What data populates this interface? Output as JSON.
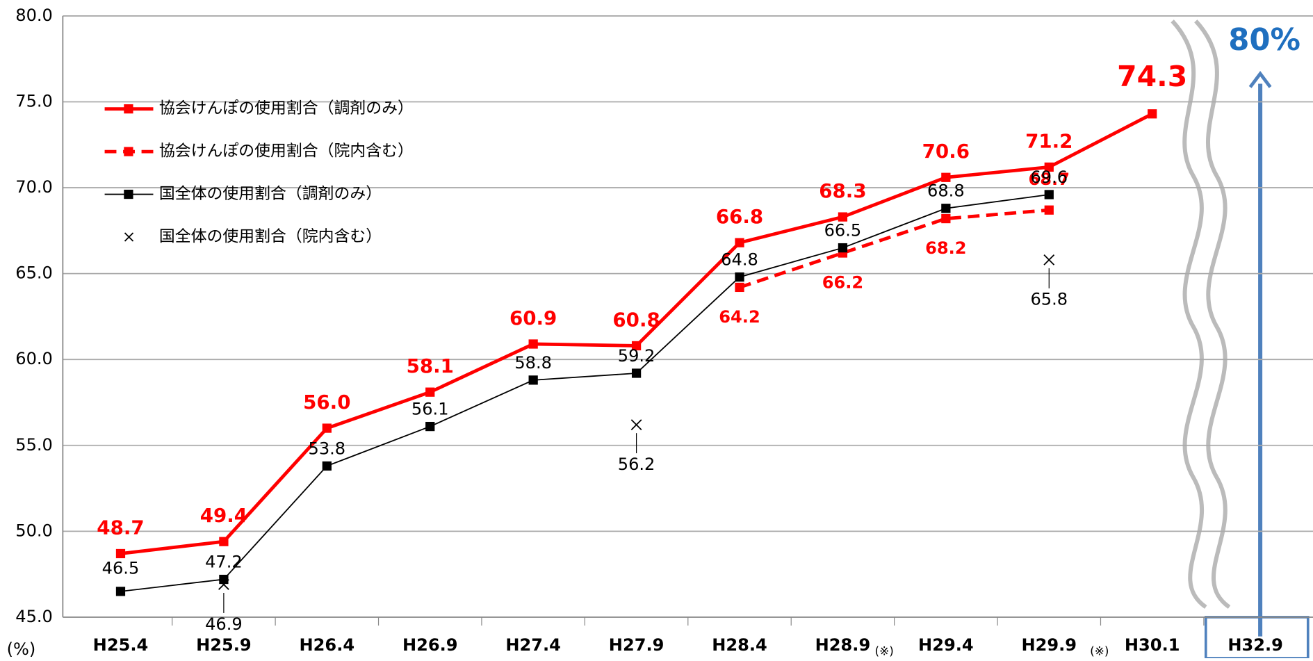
{
  "chart_data": {
    "type": "line",
    "categories": [
      "H25.4",
      "H25.9",
      "H26.4",
      "H26.9",
      "H27.4",
      "H27.9",
      "H28.4",
      "H28.9",
      "H29.4",
      "H29.9",
      "H30.1",
      "H32.9"
    ],
    "series": [
      {
        "name": "協会けんぽの使用割合（調剤のみ）",
        "color": "#ff0000",
        "style": "solid",
        "values": [
          48.7,
          49.4,
          56.0,
          58.1,
          60.9,
          60.8,
          66.8,
          68.3,
          70.6,
          71.2,
          74.3,
          null
        ],
        "value_labels": [
          "48.7",
          "49.4",
          "56.0",
          "58.1",
          "60.9",
          "60.8",
          "66.8",
          "68.3",
          "70.6",
          "71.2",
          "74.3",
          null
        ]
      },
      {
        "name": "協会けんぽの使用割合（院内含む）",
        "color": "#ff0000",
        "style": "dashed",
        "values": [
          null,
          null,
          null,
          null,
          null,
          null,
          64.2,
          66.2,
          68.2,
          68.7,
          null,
          null
        ]
      },
      {
        "name": "国全体の使用割合（調剤のみ）",
        "color": "#000000",
        "style": "thin",
        "values": [
          46.5,
          47.2,
          53.8,
          56.1,
          58.8,
          59.2,
          64.8,
          66.5,
          68.8,
          69.6,
          null,
          null
        ]
      },
      {
        "name": "国全体の使用割合（院内含む）",
        "color": "#000000",
        "style": "cross",
        "values": [
          null,
          46.9,
          null,
          null,
          null,
          56.2,
          null,
          null,
          null,
          65.8,
          null,
          null
        ]
      }
    ],
    "ylim": [
      45,
      80
    ],
    "yticks": [
      {
        "value": 45,
        "label": "45.0"
      },
      {
        "value": 50,
        "label": "50.0"
      },
      {
        "value": 55,
        "label": "55.0"
      },
      {
        "value": 60,
        "label": "60.0"
      },
      {
        "value": 65,
        "label": "65.0"
      },
      {
        "value": 70,
        "label": "70.0"
      },
      {
        "value": 75,
        "label": "75.0"
      },
      {
        "value": 80,
        "label": "80.0"
      }
    ],
    "grid": true,
    "y_unit": "(%)",
    "notes": [
      "(※)",
      "(※)"
    ],
    "target_label": "80%"
  }
}
